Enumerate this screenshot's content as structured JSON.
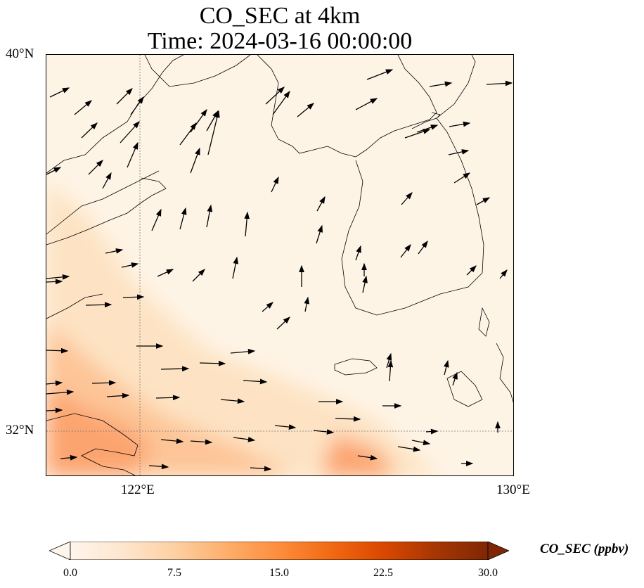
{
  "title": {
    "line1": "CO_SEC at 4km",
    "line2": "Time: 2024-03-16 00:00:00"
  },
  "map": {
    "lat_labels": [
      "40°N",
      "32°N"
    ],
    "lon_labels": [
      "122°E",
      "130°E"
    ],
    "colors": {
      "background": "#fef4e6",
      "land_outline": "#000000",
      "gridline": "#777777",
      "plume_light": "#fde3c3",
      "plume_mid": "#fdc597",
      "plume_strong": "#fca46f"
    }
  },
  "colorbar": {
    "label": "CO_SEC (ppbv)",
    "tick_labels": [
      "0.0",
      "7.5",
      "15.0",
      "22.5",
      "30.0"
    ],
    "colors": [
      "#fff5eb",
      "#fee6ce",
      "#fdd0a2",
      "#fdae6b",
      "#fd8d3c",
      "#f16913",
      "#d94801",
      "#a63603",
      "#7f2704"
    ]
  }
}
